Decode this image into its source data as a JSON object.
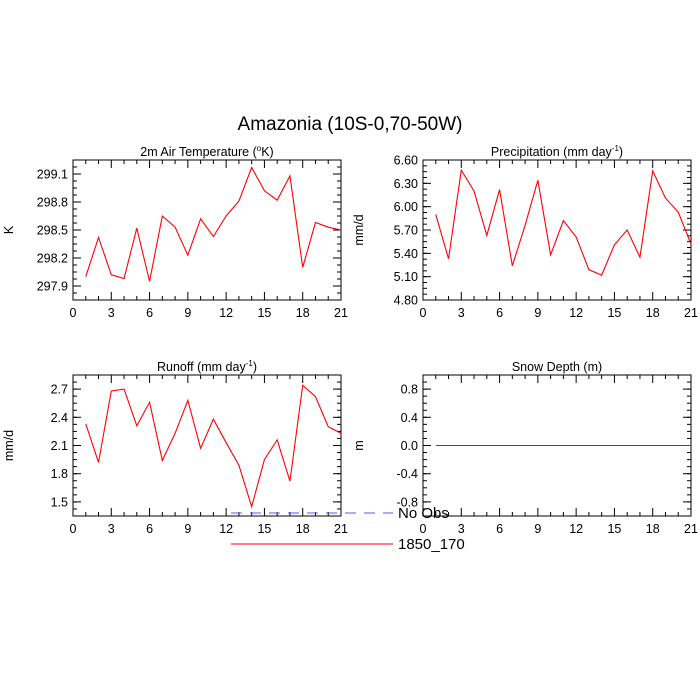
{
  "page": {
    "title": "Amazonia (10S-0,70-50W)"
  },
  "chart_data": [
    {
      "type": "line",
      "title": "2m Air Temperature",
      "title_unit": "K",
      "ylabel": "K",
      "xlabel": "",
      "xlim": [
        0,
        21
      ],
      "ylim": [
        297.75,
        299.25
      ],
      "x_ticks": [
        "0",
        "3",
        "6",
        "9",
        "12",
        "15",
        "18",
        "21"
      ],
      "y_ticks": [
        "297.9",
        "298.2",
        "298.5",
        "298.8",
        "299.1"
      ],
      "grid": false,
      "series": [
        {
          "name": "1850_170",
          "color": "#ff0000",
          "x": [
            1,
            2,
            3,
            4,
            5,
            6,
            7,
            8,
            9,
            10,
            11,
            12,
            13,
            14,
            15,
            16,
            17,
            18,
            19,
            20,
            21
          ],
          "y": [
            298.0,
            298.42,
            298.02,
            297.98,
            298.52,
            297.95,
            298.65,
            298.53,
            298.23,
            298.62,
            298.43,
            298.65,
            298.81,
            299.17,
            298.92,
            298.82,
            299.08,
            298.1,
            298.58,
            298.53,
            298.5
          ]
        }
      ]
    },
    {
      "type": "line",
      "title": "Precipitation",
      "title_unit": "mm day",
      "title_unit_exp": "-1",
      "ylabel": "mm/d",
      "xlabel": "",
      "xlim": [
        0,
        21
      ],
      "ylim": [
        4.8,
        6.6
      ],
      "x_ticks": [
        "0",
        "3",
        "6",
        "9",
        "12",
        "15",
        "18",
        "21"
      ],
      "y_ticks": [
        "4.80",
        "5.10",
        "5.40",
        "5.70",
        "6.00",
        "6.30",
        "6.60"
      ],
      "grid": false,
      "series": [
        {
          "name": "1850_170",
          "color": "#ff0000",
          "x": [
            1,
            2,
            3,
            4,
            5,
            6,
            7,
            8,
            9,
            10,
            11,
            12,
            13,
            14,
            15,
            16,
            17,
            18,
            19,
            20,
            21
          ],
          "y": [
            5.9,
            5.33,
            6.47,
            6.2,
            5.63,
            6.22,
            5.24,
            5.76,
            6.34,
            5.38,
            5.82,
            5.61,
            5.19,
            5.12,
            5.51,
            5.7,
            5.35,
            6.46,
            6.11,
            5.93,
            5.52
          ]
        }
      ]
    },
    {
      "type": "line",
      "title": "Runoff",
      "title_unit": "mm day",
      "title_unit_exp": "-1",
      "ylabel": "mm/d",
      "xlabel": "",
      "xlim": [
        0,
        21
      ],
      "ylim": [
        1.35,
        2.85
      ],
      "x_ticks": [
        "0",
        "3",
        "6",
        "9",
        "12",
        "15",
        "18",
        "21"
      ],
      "y_ticks": [
        "1.5",
        "1.8",
        "2.1",
        "2.4",
        "2.7"
      ],
      "grid": false,
      "series": [
        {
          "name": "1850_170",
          "color": "#ff0000",
          "x": [
            1,
            2,
            3,
            4,
            5,
            6,
            7,
            8,
            9,
            10,
            11,
            12,
            13,
            14,
            15,
            16,
            17,
            18,
            19,
            20,
            21
          ],
          "y": [
            2.33,
            1.92,
            2.68,
            2.7,
            2.31,
            2.56,
            1.94,
            2.23,
            2.58,
            2.07,
            2.38,
            2.13,
            1.89,
            1.45,
            1.95,
            2.16,
            1.72,
            2.74,
            2.62,
            2.3,
            2.23
          ]
        }
      ]
    },
    {
      "type": "line",
      "title": "Snow Depth (m)",
      "ylabel": "m",
      "xlabel": "",
      "xlim": [
        0,
        21
      ],
      "ylim": [
        -1.0,
        1.0
      ],
      "x_ticks": [
        "0",
        "3",
        "6",
        "9",
        "12",
        "15",
        "18",
        "21"
      ],
      "y_ticks": [
        "-0.8",
        "-0.4",
        "0.0",
        "0.4",
        "0.8"
      ],
      "grid": false,
      "series": [
        {
          "name": "1850_170",
          "color": "#ff0000",
          "x": [
            1,
            2,
            3,
            4,
            5,
            6,
            7,
            8,
            9,
            10,
            11,
            12,
            13,
            14,
            15,
            16,
            17,
            18,
            19,
            20,
            21
          ],
          "y": [
            0,
            0,
            0,
            0,
            0,
            0,
            0,
            0,
            0,
            0,
            0,
            0,
            0,
            0,
            0,
            0,
            0,
            0,
            0,
            0,
            0
          ]
        }
      ]
    }
  ],
  "legend": {
    "placement": "bottom-center",
    "items": [
      {
        "label": "No Obs",
        "color": "#0000ff",
        "style": "dashed"
      },
      {
        "label": "1850_170",
        "color": "#ff0000",
        "style": "solid"
      }
    ]
  }
}
